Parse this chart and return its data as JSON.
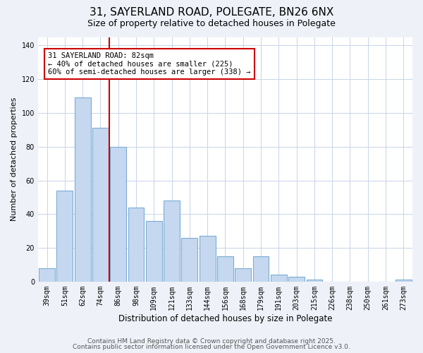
{
  "title": "31, SAYERLAND ROAD, POLEGATE, BN26 6NX",
  "subtitle": "Size of property relative to detached houses in Polegate",
  "xlabel": "Distribution of detached houses by size in Polegate",
  "ylabel": "Number of detached properties",
  "categories": [
    "39sqm",
    "51sqm",
    "62sqm",
    "74sqm",
    "86sqm",
    "98sqm",
    "109sqm",
    "121sqm",
    "133sqm",
    "144sqm",
    "156sqm",
    "168sqm",
    "179sqm",
    "191sqm",
    "203sqm",
    "215sqm",
    "226sqm",
    "238sqm",
    "250sqm",
    "261sqm",
    "273sqm"
  ],
  "values": [
    8,
    54,
    109,
    91,
    80,
    44,
    36,
    48,
    26,
    27,
    15,
    8,
    15,
    4,
    3,
    1,
    0,
    0,
    0,
    0,
    1
  ],
  "bar_color": "#c5d8f0",
  "bar_edge_color": "#7aadd4",
  "vline_color": "#cc0000",
  "vline_x": 3.5,
  "annotation_text": "31 SAYERLAND ROAD: 82sqm\n← 40% of detached houses are smaller (225)\n60% of semi-detached houses are larger (338) →",
  "annotation_box_color": "#ffffff",
  "annotation_box_edge_color": "#cc0000",
  "ylim": [
    0,
    145
  ],
  "yticks": [
    0,
    20,
    40,
    60,
    80,
    100,
    120,
    140
  ],
  "footer_line1": "Contains HM Land Registry data © Crown copyright and database right 2025.",
  "footer_line2": "Contains public sector information licensed under the Open Government Licence v3.0.",
  "background_color": "#eef2f8",
  "plot_bg_color": "#ffffff",
  "grid_color": "#c8d4e8",
  "title_fontsize": 11,
  "subtitle_fontsize": 9,
  "xlabel_fontsize": 8.5,
  "ylabel_fontsize": 8,
  "tick_label_fontsize": 7,
  "footer_fontsize": 6.5,
  "annot_fontsize": 7.5
}
